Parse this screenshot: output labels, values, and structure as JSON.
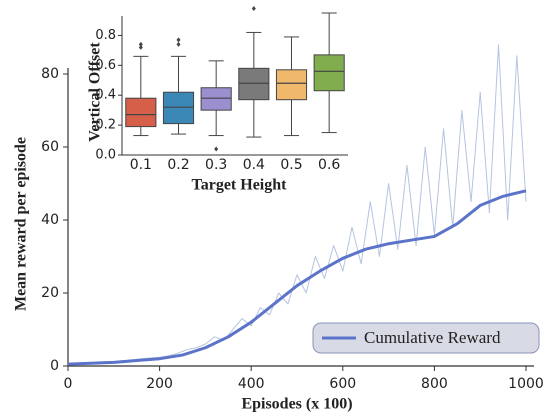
{
  "chart_data": [
    {
      "type": "line",
      "xlabel": "Episodes (x 100)",
      "ylabel": "Mean reward per episode",
      "xlim": [
        0,
        1000
      ],
      "ylim": [
        0,
        80
      ],
      "xticks": [
        0,
        200,
        400,
        600,
        800,
        1000
      ],
      "yticks": [
        0,
        20,
        40,
        60,
        80
      ],
      "legend": "bottom-right",
      "series": [
        {
          "color": "#b5c4e0",
          "x": [
            0,
            20,
            40,
            60,
            80,
            100,
            120,
            140,
            160,
            180,
            200,
            220,
            240,
            260,
            280,
            300,
            320,
            340,
            360,
            380,
            400,
            420,
            440,
            460,
            480,
            500,
            520,
            540,
            560,
            580,
            600,
            620,
            640,
            660,
            680,
            700,
            720,
            740,
            760,
            780,
            800,
            820,
            840,
            860,
            880,
            900,
            920,
            940,
            960,
            980,
            1000
          ],
          "values": [
            0.5,
            0.6,
            0.8,
            1,
            1.2,
            1.1,
            1.5,
            1.6,
            2,
            2.2,
            2.4,
            2.8,
            3.5,
            4.5,
            5,
            6,
            8,
            7,
            10,
            13,
            11,
            16,
            14,
            20,
            17,
            25,
            20,
            30,
            24,
            33,
            26,
            38,
            28,
            45,
            30,
            50,
            32,
            55,
            33,
            60,
            36,
            65,
            38,
            70,
            45,
            75,
            42,
            88,
            40,
            85,
            45
          ]
        },
        {
          "name": "Cumulative Reward",
          "color": "#5b73c9",
          "x": [
            0,
            100,
            200,
            250,
            300,
            350,
            400,
            450,
            500,
            550,
            600,
            650,
            700,
            750,
            800,
            850,
            900,
            950,
            1000
          ],
          "values": [
            0.5,
            1,
            2,
            3,
            5,
            8,
            12,
            17,
            22,
            26,
            29.5,
            32,
            33.5,
            34.5,
            35.5,
            39,
            44,
            46.5,
            48
          ]
        }
      ]
    },
    {
      "type": "box",
      "xlabel": "Target Height",
      "ylabel": "Vertical Offset",
      "categories": [
        "0.1",
        "0.2",
        "0.3",
        "0.4",
        "0.5",
        "0.6"
      ],
      "ylim": [
        0,
        0.93
      ],
      "yticks": [
        {
          "value": 0,
          "label": "0.0"
        },
        0.2,
        0.4,
        0.6,
        0.8
      ],
      "colors": [
        "#d65f4a",
        "#3b87b5",
        "#9c8fcf",
        "#7a7a7a",
        "#f0b86b",
        "#82ad4f"
      ],
      "boxes": [
        {
          "whislo": 0.13,
          "q1": 0.19,
          "med": 0.27,
          "q3": 0.38,
          "whishi": 0.66,
          "fliers": [
            0.72,
            0.74
          ]
        },
        {
          "whislo": 0.14,
          "q1": 0.21,
          "med": 0.32,
          "q3": 0.42,
          "whishi": 0.66,
          "fliers": [
            0.74,
            0.77
          ]
        },
        {
          "whislo": 0.13,
          "q1": 0.3,
          "med": 0.38,
          "q3": 0.45,
          "whishi": 0.63,
          "fliers": [
            0.04
          ]
        },
        {
          "whislo": 0.12,
          "q1": 0.37,
          "med": 0.48,
          "q3": 0.58,
          "whishi": 0.82,
          "fliers": [
            0.98
          ]
        },
        {
          "whislo": 0.13,
          "q1": 0.37,
          "med": 0.48,
          "q3": 0.57,
          "whishi": 0.79,
          "fliers": []
        },
        {
          "whislo": 0.15,
          "q1": 0.43,
          "med": 0.56,
          "q3": 0.67,
          "whishi": 0.95,
          "fliers": []
        }
      ]
    }
  ]
}
